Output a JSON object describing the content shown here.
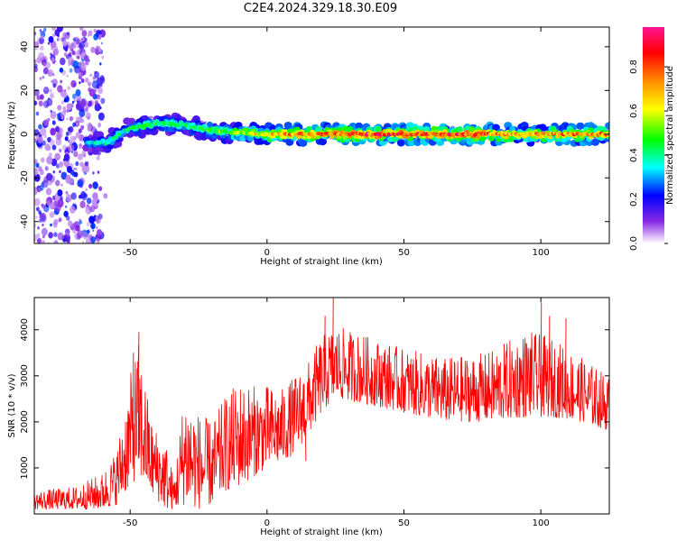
{
  "title": "C2E4.2024.329.18.30.E09",
  "chart_data": [
    {
      "type": "heatmap",
      "xlabel": "Height of straight line (km)",
      "ylabel": "Frequency (Hz)",
      "xlim": [
        -85,
        125
      ],
      "ylim": [
        -50,
        49
      ],
      "xticks": [
        -50,
        0,
        50,
        100
      ],
      "yticks": [
        -40,
        -20,
        0,
        20,
        40
      ],
      "colorbar": {
        "label": "Normalized spectral amplitude",
        "range": [
          0,
          0.98
        ],
        "ticks": [
          0,
          0.2,
          0.4,
          0.6,
          0.8
        ],
        "tick_labels": [
          "0.0",
          "0.2",
          "0.4",
          "0.6",
          "0.8"
        ],
        "colormap": [
          "#ffffff",
          "#8a2be2",
          "#0000ff",
          "#00ffff",
          "#00ff00",
          "#ffff00",
          "#ff8c00",
          "#ff0000",
          "#ff1493"
        ]
      },
      "noise_region_x": [
        -85,
        -60
      ],
      "ridge": [
        {
          "x": -64,
          "f": -4,
          "a": 0.35
        },
        {
          "x": -58,
          "f": -4,
          "a": 0.45
        },
        {
          "x": -52,
          "f": 2,
          "a": 0.4
        },
        {
          "x": -45,
          "f": 4,
          "a": 0.5
        },
        {
          "x": -38,
          "f": 5,
          "a": 0.45
        },
        {
          "x": -30,
          "f": 4,
          "a": 0.45
        },
        {
          "x": -22,
          "f": 2,
          "a": 0.5
        },
        {
          "x": -15,
          "f": 1,
          "a": 0.55
        },
        {
          "x": -8,
          "f": 0.5,
          "a": 0.6
        },
        {
          "x": 0,
          "f": 0,
          "a": 0.75
        },
        {
          "x": 20,
          "f": 0,
          "a": 0.85
        },
        {
          "x": 40,
          "f": 0,
          "a": 0.9
        },
        {
          "x": 60,
          "f": 0,
          "a": 0.9
        },
        {
          "x": 75,
          "f": 0,
          "a": 0.9
        },
        {
          "x": 90,
          "f": 0,
          "a": 0.75
        },
        {
          "x": 110,
          "f": 0,
          "a": 0.8
        },
        {
          "x": 125,
          "f": 0,
          "a": 0.8
        }
      ]
    },
    {
      "type": "line",
      "xlabel": "Height of straight line (km)",
      "ylabel": "SNR (10 * v/v)",
      "xlim": [
        -85,
        125
      ],
      "ylim": [
        0,
        4700
      ],
      "xticks": [
        -50,
        0,
        50,
        100
      ],
      "yticks": [
        1000,
        2000,
        3000,
        4000
      ],
      "series": [
        {
          "color": "#ff0000",
          "envelope": [
            {
              "x": -85,
              "lo": 100,
              "hi": 500
            },
            {
              "x": -70,
              "lo": 100,
              "hi": 600
            },
            {
              "x": -60,
              "lo": 100,
              "hi": 900
            },
            {
              "x": -55,
              "lo": 200,
              "hi": 1400
            },
            {
              "x": -50,
              "lo": 600,
              "hi": 3000
            },
            {
              "x": -47,
              "lo": 800,
              "hi": 3800
            },
            {
              "x": -42,
              "lo": 400,
              "hi": 2000
            },
            {
              "x": -37,
              "lo": 100,
              "hi": 1600
            },
            {
              "x": -34,
              "lo": 100,
              "hi": 800
            },
            {
              "x": -30,
              "lo": 200,
              "hi": 2800
            },
            {
              "x": -25,
              "lo": 100,
              "hi": 2200
            },
            {
              "x": -20,
              "lo": 200,
              "hi": 2000
            },
            {
              "x": -15,
              "lo": 500,
              "hi": 2600
            },
            {
              "x": -10,
              "lo": 600,
              "hi": 2900
            },
            {
              "x": -5,
              "lo": 800,
              "hi": 2800
            },
            {
              "x": 0,
              "lo": 1000,
              "hi": 2800
            },
            {
              "x": 5,
              "lo": 1100,
              "hi": 2700
            },
            {
              "x": 10,
              "lo": 1300,
              "hi": 3000
            },
            {
              "x": 15,
              "lo": 1700,
              "hi": 3300
            },
            {
              "x": 20,
              "lo": 2200,
              "hi": 3900
            },
            {
              "x": 25,
              "lo": 2500,
              "hi": 4100
            },
            {
              "x": 35,
              "lo": 2400,
              "hi": 3900
            },
            {
              "x": 50,
              "lo": 2200,
              "hi": 3600
            },
            {
              "x": 65,
              "lo": 2000,
              "hi": 3400
            },
            {
              "x": 80,
              "lo": 2000,
              "hi": 3500
            },
            {
              "x": 95,
              "lo": 2100,
              "hi": 4000
            },
            {
              "x": 105,
              "lo": 2100,
              "hi": 3800
            },
            {
              "x": 115,
              "lo": 2000,
              "hi": 3400
            },
            {
              "x": 125,
              "lo": 1800,
              "hi": 3000
            }
          ],
          "spikes": [
            {
              "x": -47,
              "y": 3950
            },
            {
              "x": -49,
              "y": 3500
            },
            {
              "x": 14,
              "y": 1150
            },
            {
              "x": 21,
              "y": 4300
            },
            {
              "x": 24,
              "y": 4700
            },
            {
              "x": 100,
              "y": 4600
            },
            {
              "x": 103,
              "y": 4300
            },
            {
              "x": 109,
              "y": 4250
            }
          ]
        }
      ]
    }
  ]
}
